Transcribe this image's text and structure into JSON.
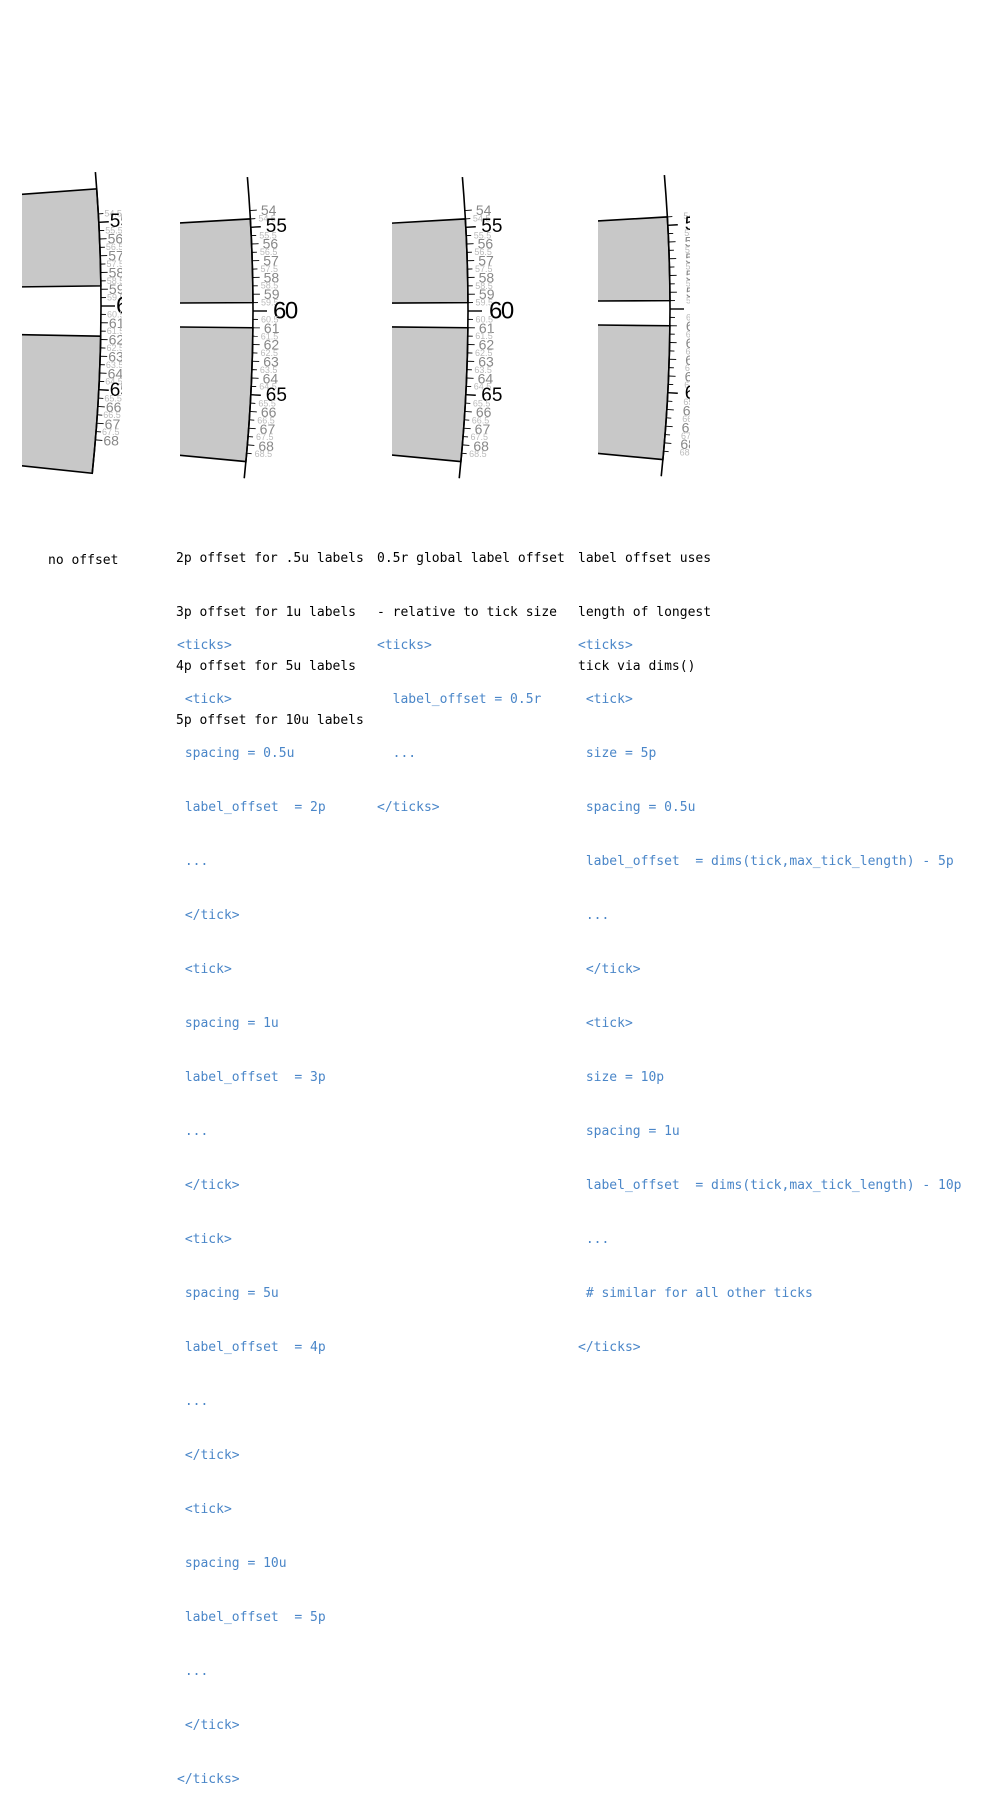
{
  "colors": {
    "fill": "#c8c8c8",
    "line": "#000000",
    "major_label": "#000000",
    "minor_label": "#888888",
    "half_label": "#bbbbbb",
    "code": "#4a86c8"
  },
  "panels": [
    {
      "id": "no-offset",
      "caption": [
        "no offset"
      ],
      "code": [],
      "visible_range": [
        54.5,
        68
      ]
    },
    {
      "id": "fixed-offsets",
      "caption": [
        "2p offset for .5u labels",
        "3p offset for 1u labels",
        "4p offset for 5u labels",
        "5p offset for 10u labels"
      ],
      "code": [
        "<ticks>",
        " <tick>",
        " spacing = 0.5u",
        " label_offset  = 2p",
        " ...",
        " </tick>",
        " <tick>",
        " spacing = 1u",
        " label_offset  = 3p",
        " ...",
        " </tick>",
        " <tick>",
        " spacing = 5u",
        " label_offset  = 4p",
        " ...",
        " </tick>",
        " <tick>",
        " spacing = 10u",
        " label_offset  = 5p",
        " ...",
        " </tick>",
        "</ticks>"
      ],
      "visible_range": [
        54,
        68.5
      ]
    },
    {
      "id": "relative-offset",
      "caption": [
        "0.5r global label offset",
        "- relative to tick size"
      ],
      "code": [
        "<ticks>",
        "  label_offset = 0.5r",
        "  ...",
        "</ticks>"
      ],
      "visible_range": [
        54,
        68.5
      ]
    },
    {
      "id": "dims-offset",
      "caption": [
        "label offset uses",
        "length of longest",
        "tick via dims()"
      ],
      "code": [
        "<ticks>",
        " <tick>",
        " size = 5p",
        " spacing = 0.5u",
        " label_offset  = dims(tick,max_tick_length) - 5p",
        " ...",
        " </tick>",
        " <tick>",
        " size = 10p",
        " spacing = 1u",
        " label_offset  = dims(tick,max_tick_length) - 10p",
        " ...",
        " # similar for all other ticks",
        "</ticks>"
      ],
      "visible_range": [
        54.5,
        68.5
      ]
    }
  ]
}
